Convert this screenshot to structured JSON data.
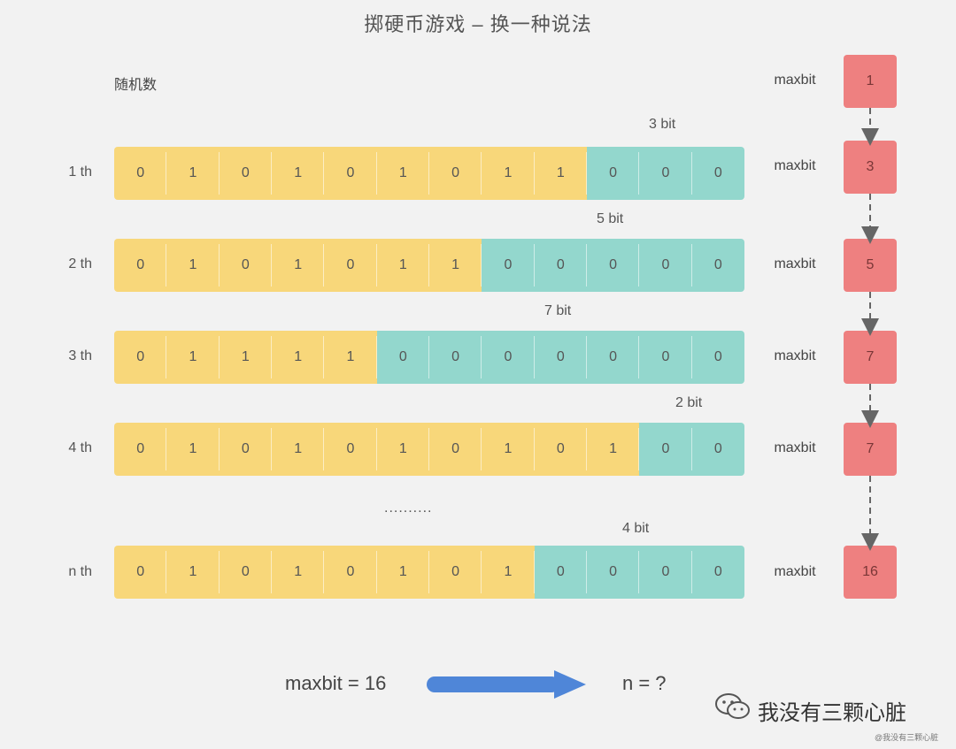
{
  "title": "掷硬币游戏 – 换一种说法",
  "random_label": "随机数",
  "maxbit_label": "maxbit",
  "initial_max": "1",
  "rows": [
    {
      "label": "1 th",
      "bits": [
        "0",
        "1",
        "0",
        "1",
        "0",
        "1",
        "0",
        "1",
        "1",
        "0",
        "0",
        "0"
      ],
      "yellow": 9,
      "bit_text": "3 bit",
      "max": "3"
    },
    {
      "label": "2 th",
      "bits": [
        "0",
        "1",
        "0",
        "1",
        "0",
        "1",
        "1",
        "0",
        "0",
        "0",
        "0",
        "0"
      ],
      "yellow": 7,
      "bit_text": "5 bit",
      "max": "5"
    },
    {
      "label": "3 th",
      "bits": [
        "0",
        "1",
        "1",
        "1",
        "1",
        "0",
        "0",
        "0",
        "0",
        "0",
        "0",
        "0"
      ],
      "yellow": 5,
      "bit_text": "7 bit",
      "max": "7"
    },
    {
      "label": "4 th",
      "bits": [
        "0",
        "1",
        "0",
        "1",
        "0",
        "1",
        "0",
        "1",
        "0",
        "1",
        "0",
        "0"
      ],
      "yellow": 10,
      "bit_text": "2 bit",
      "max": "7"
    },
    {
      "label": "n th",
      "bits": [
        "0",
        "1",
        "0",
        "1",
        "0",
        "1",
        "0",
        "1",
        "0",
        "0",
        "0",
        "0"
      ],
      "yellow": 8,
      "bit_text": "4 bit",
      "max": "16"
    }
  ],
  "ellipsis": "..........",
  "bottom": {
    "left": "maxbit = 16",
    "right": "n = ?"
  },
  "watermark": {
    "text": "我没有三颗心脏",
    "small": "@我没有三颗心脏"
  },
  "colors": {
    "yellow": "#f8d77a",
    "teal": "#93d7cd",
    "red": "#ee8080",
    "arrow": "#4f86d8"
  }
}
